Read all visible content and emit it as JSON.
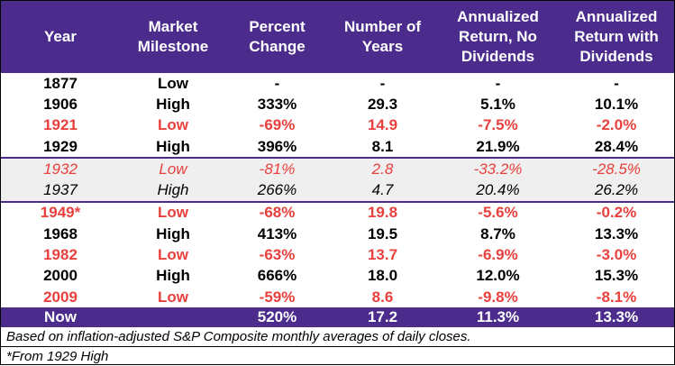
{
  "header": {
    "year": "Year",
    "milestone": [
      "Market",
      "Milestone"
    ],
    "percent": [
      "Percent",
      "Change"
    ],
    "years": [
      "Number of",
      "Years"
    ],
    "return_no_div": [
      "Annualized",
      "Return, No",
      "Dividends"
    ],
    "return_with_div": [
      "Annualized",
      "Return with",
      "Dividends"
    ]
  },
  "rows": [
    {
      "year": "1877",
      "milestone": "Low",
      "percent": "-",
      "years": "-",
      "return_no_div": "-",
      "return_with_div": "-"
    },
    {
      "year": "1906",
      "milestone": "High",
      "percent": "333%",
      "years": "29.3",
      "return_no_div": "5.1%",
      "return_with_div": "10.1%"
    },
    {
      "year": "1921",
      "milestone": "Low",
      "percent": "-69%",
      "years": "14.9",
      "return_no_div": "-7.5%",
      "return_with_div": "-2.0%"
    },
    {
      "year": "1929",
      "milestone": "High",
      "percent": "396%",
      "years": "8.1",
      "return_no_div": "21.9%",
      "return_with_div": "28.4%"
    },
    {
      "year": "1932",
      "milestone": "Low",
      "percent": "-81%",
      "years": "2.8",
      "return_no_div": "-33.2%",
      "return_with_div": "-28.5%"
    },
    {
      "year": "1937",
      "milestone": "High",
      "percent": "266%",
      "years": "4.7",
      "return_no_div": "20.4%",
      "return_with_div": "26.2%"
    },
    {
      "year": "1949*",
      "milestone": "Low",
      "percent": "-68%",
      "years": "19.8",
      "return_no_div": "-5.6%",
      "return_with_div": "-0.2%"
    },
    {
      "year": "1968",
      "milestone": "High",
      "percent": "413%",
      "years": "19.5",
      "return_no_div": "8.7%",
      "return_with_div": "13.3%"
    },
    {
      "year": "1982",
      "milestone": "Low",
      "percent": "-63%",
      "years": "13.7",
      "return_no_div": "-6.9%",
      "return_with_div": "-3.0%"
    },
    {
      "year": "2000",
      "milestone": "High",
      "percent": "666%",
      "years": "18.0",
      "return_no_div": "12.0%",
      "return_with_div": "15.3%"
    },
    {
      "year": "2009",
      "milestone": "Low",
      "percent": "-59%",
      "years": "8.6",
      "return_no_div": "-9.8%",
      "return_with_div": "-8.1%"
    }
  ],
  "summary": {
    "year": "Now",
    "milestone": "",
    "percent": "520%",
    "years": "17.2",
    "return_no_div": "11.3%",
    "return_with_div": "13.3%"
  },
  "notes": [
    "Based on inflation-adjusted S&P Composite monthly averages of daily closes.",
    "*From 1929 High"
  ],
  "colors": {
    "header_bg": "#4b2c8c",
    "low_text": "#e8403c",
    "shaded_bg": "#efefef"
  }
}
